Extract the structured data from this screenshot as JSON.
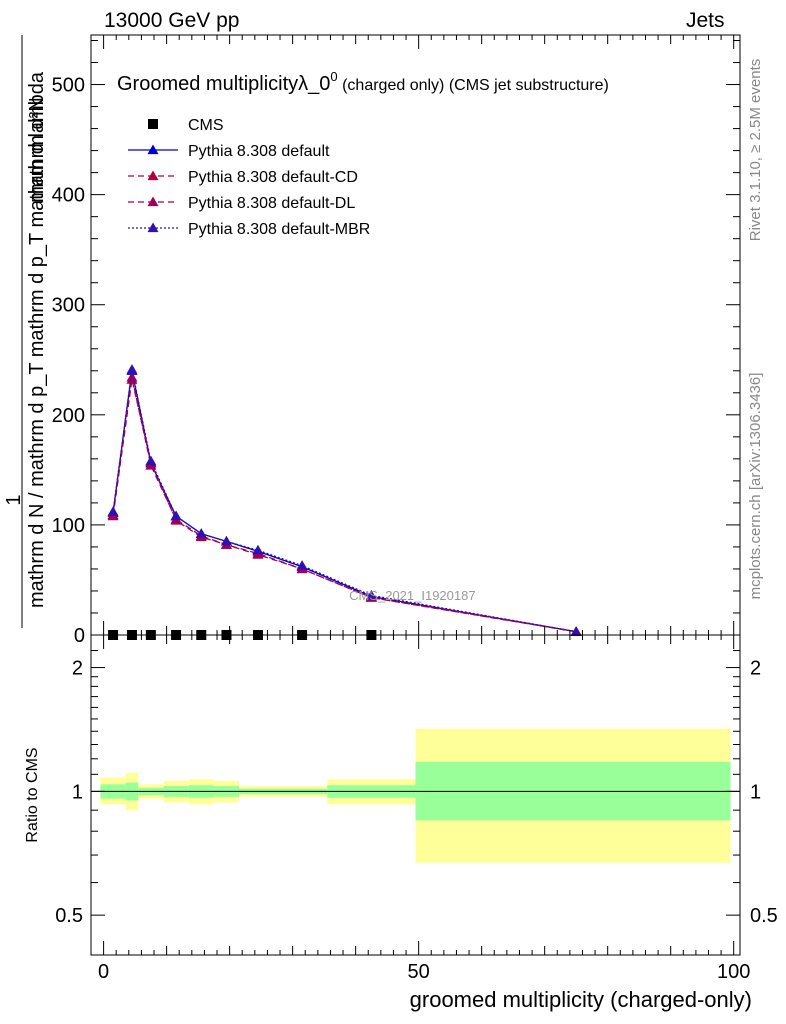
{
  "header": {
    "energy_label": "13000 GeV pp",
    "category_label": "Jets",
    "rivet_label": "Rivet 3.1.10, ≥ 2.5M events",
    "mcplots_label": "mcplots.cern.ch [arXiv:1306.3436]"
  },
  "chart_data": [
    {
      "type": "line",
      "title_main": "Groomed multiplicityλ_0",
      "title_sup": "0",
      "title_sub": "(charged only) (CMS jet substructure)",
      "watermark": "CMS_2021_I1920187",
      "ylabel": {
        "numerator": "mathrm d²N",
        "denominator": "mathrm d N / mathrm d p_T mathrm d p_T mathrm d lambda",
        "prefix": "1"
      },
      "ylim": [
        0,
        545
      ],
      "yticks": [
        0,
        100,
        200,
        300,
        400,
        500
      ],
      "xlim": [
        -2,
        101
      ],
      "grid": false,
      "legend_position": "top-left",
      "series": [
        {
          "name": "CMS",
          "color": "#000000",
          "marker": "square",
          "x": [
            1.5,
            4.5,
            7.5,
            11.5,
            15.5,
            19.5,
            24.5,
            31.5,
            42.5
          ],
          "y": [
            0,
            0,
            0,
            0,
            0,
            0,
            0,
            0,
            0
          ]
        },
        {
          "name": "Pythia 8.308 default",
          "color": "#0000cc",
          "marker": "triangle",
          "dash": "",
          "x": [
            1.5,
            4.5,
            7.5,
            11.5,
            15.5,
            19.5,
            24.5,
            31.5,
            42.5,
            75
          ],
          "y": [
            111,
            240,
            156,
            108,
            92,
            85,
            76,
            62,
            35,
            3
          ]
        },
        {
          "name": "Pythia 8.308 default-CD",
          "color": "#b0003a",
          "marker": "triangle",
          "dash": "6,4",
          "x": [
            1.5,
            4.5,
            7.5,
            11.5,
            15.5,
            19.5,
            24.5,
            31.5,
            42.5,
            75
          ],
          "y": [
            108,
            232,
            157,
            104,
            89,
            82,
            73,
            60,
            34,
            3
          ]
        },
        {
          "name": "Pythia 8.308 default-DL",
          "color": "#a0005a",
          "marker": "triangle",
          "dash": "6,4",
          "x": [
            1.5,
            4.5,
            7.5,
            11.5,
            15.5,
            19.5,
            24.5,
            31.5,
            42.5,
            75
          ],
          "y": [
            109,
            234,
            154,
            105,
            90,
            82,
            74,
            60,
            34,
            3
          ]
        },
        {
          "name": "Pythia 8.308 default-MBR",
          "color": "#3010b0",
          "marker": "triangle",
          "dash": "2,2",
          "x": [
            1.5,
            4.5,
            7.5,
            11.5,
            15.5,
            19.5,
            24.5,
            31.5,
            42.5,
            75
          ],
          "y": [
            112,
            241,
            158,
            108,
            92,
            85,
            77,
            63,
            36,
            3
          ]
        }
      ]
    },
    {
      "type": "area",
      "ylabel": "Ratio to CMS",
      "xlabel": "groomed multiplicity (charged-only)",
      "log_y": true,
      "ylim": [
        0.4,
        2.4
      ],
      "yticks": [
        0.5,
        1,
        2
      ],
      "xticks": [
        0,
        50,
        100
      ],
      "xlim": [
        -2,
        101
      ],
      "reference_line": 1,
      "bins": [
        {
          "x0": -0.5,
          "x1": 3.5,
          "green": [
            0.96,
            1.04
          ],
          "yellow": [
            0.93,
            1.08
          ]
        },
        {
          "x0": 3.5,
          "x1": 5.5,
          "green": [
            0.95,
            1.05
          ],
          "yellow": [
            0.9,
            1.11
          ]
        },
        {
          "x0": 5.5,
          "x1": 9.5,
          "green": [
            0.98,
            1.02
          ],
          "yellow": [
            0.96,
            1.04
          ]
        },
        {
          "x0": 9.5,
          "x1": 13.5,
          "green": [
            0.97,
            1.03
          ],
          "yellow": [
            0.94,
            1.06
          ]
        },
        {
          "x0": 13.5,
          "x1": 17.5,
          "green": [
            0.965,
            1.035
          ],
          "yellow": [
            0.93,
            1.07
          ]
        },
        {
          "x0": 17.5,
          "x1": 21.5,
          "green": [
            0.97,
            1.03
          ],
          "yellow": [
            0.94,
            1.06
          ]
        },
        {
          "x0": 21.5,
          "x1": 35.5,
          "green": [
            0.985,
            1.015
          ],
          "yellow": [
            0.97,
            1.03
          ]
        },
        {
          "x0": 35.5,
          "x1": 49.5,
          "green": [
            0.965,
            1.035
          ],
          "yellow": [
            0.93,
            1.07
          ]
        },
        {
          "x0": 49.5,
          "x1": 99.5,
          "green": [
            0.85,
            1.18
          ],
          "yellow": [
            0.67,
            1.42
          ]
        }
      ]
    }
  ]
}
